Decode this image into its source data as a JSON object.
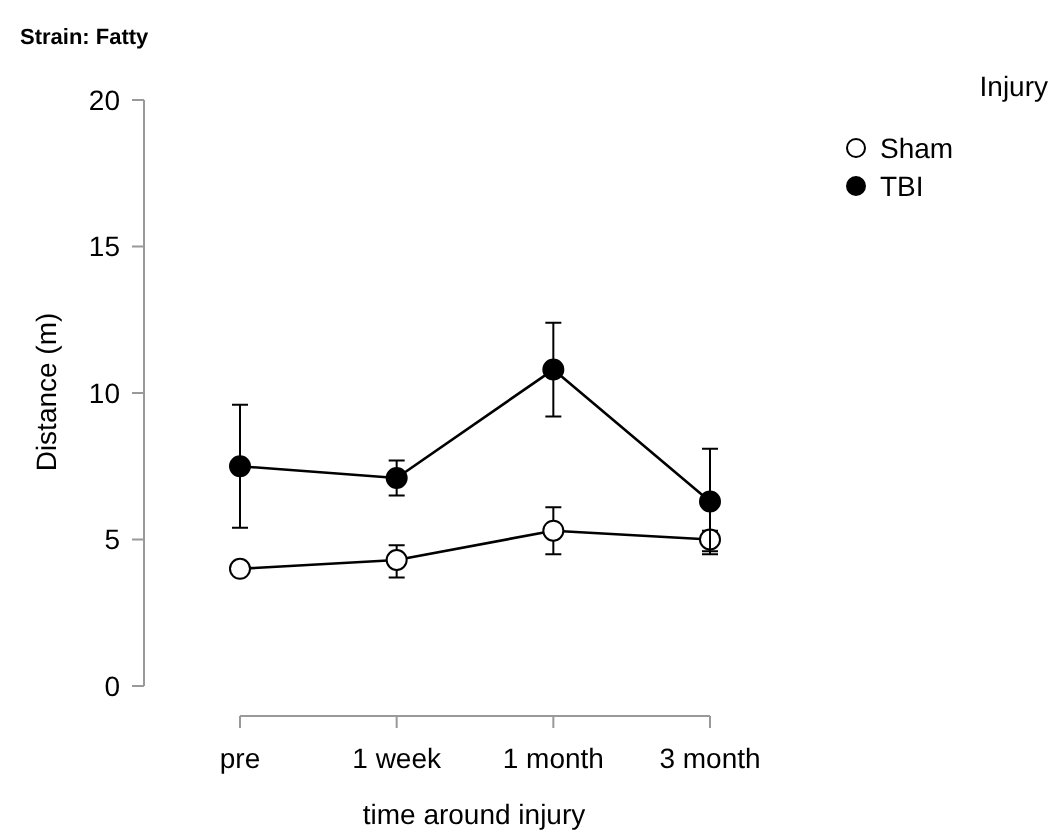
{
  "chart_data": {
    "type": "line",
    "title": "Strain: Fatty",
    "xlabel": "time around injury",
    "ylabel": "Distance (m)",
    "legend_title": "Injury",
    "categories": [
      "pre",
      "1 week",
      "1 month",
      "3 month"
    ],
    "series": [
      {
        "name": "Sham",
        "color": "#ffffff",
        "values": [
          4.0,
          4.3,
          5.3,
          5.0
        ],
        "errors": [
          null,
          [
            3.7,
            4.8
          ],
          [
            4.5,
            6.1
          ],
          [
            4.6,
            5.3
          ]
        ]
      },
      {
        "name": "TBI",
        "color": "#000000",
        "values": [
          7.5,
          7.1,
          10.8,
          6.3
        ],
        "errors": [
          [
            5.4,
            9.6
          ],
          [
            6.5,
            7.7
          ],
          [
            9.2,
            12.4
          ],
          [
            4.5,
            8.1
          ]
        ]
      }
    ],
    "ylim": [
      0,
      20
    ],
    "yticks": [
      0,
      5,
      10,
      15,
      20
    ],
    "grid": false,
    "legend": "top right",
    "marker": "circle",
    "line_style": "solid"
  }
}
